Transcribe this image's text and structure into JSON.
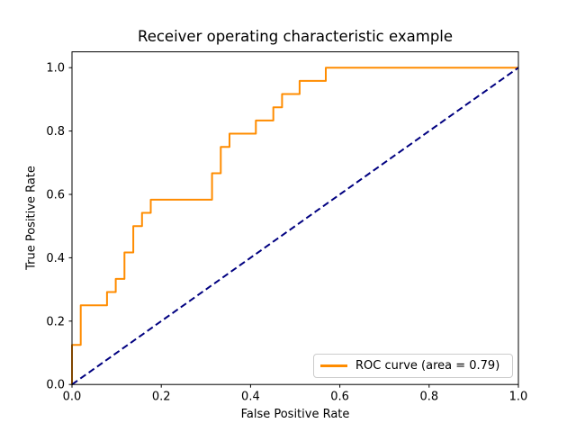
{
  "chart_data": {
    "type": "line",
    "title": "Receiver operating characteristic example",
    "xlabel": "False Positive Rate",
    "ylabel": "True Positive Rate",
    "xlim": [
      0.0,
      1.0
    ],
    "ylim": [
      0.0,
      1.05
    ],
    "x_ticks": [
      0.0,
      0.2,
      0.4,
      0.6,
      0.8,
      1.0
    ],
    "x_tick_labels": [
      "0.0",
      "0.2",
      "0.4",
      "0.6",
      "0.8",
      "1.0"
    ],
    "y_ticks": [
      0.0,
      0.2,
      0.4,
      0.6,
      0.8,
      1.0
    ],
    "y_tick_labels": [
      "0.0",
      "0.2",
      "0.4",
      "0.6",
      "0.8",
      "1.0"
    ],
    "grid": false,
    "background_color": "#ffffff",
    "axes_edge_color": "#000000",
    "legend": {
      "position": "lower right",
      "border_color": "#cccccc",
      "entries": [
        {
          "label": "ROC curve (area = 0.79)",
          "color": "#FF8C00",
          "style": "solid"
        }
      ]
    },
    "auc": 0.79,
    "series": [
      {
        "name": "ROC curve",
        "color": "#FF8C00",
        "style": "solid",
        "linewidth": 2,
        "points": [
          [
            0.0,
            0.0
          ],
          [
            0.0,
            0.125
          ],
          [
            0.0196,
            0.125
          ],
          [
            0.0196,
            0.25
          ],
          [
            0.0784,
            0.25
          ],
          [
            0.0784,
            0.2917
          ],
          [
            0.098,
            0.2917
          ],
          [
            0.098,
            0.3333
          ],
          [
            0.1176,
            0.3333
          ],
          [
            0.1176,
            0.4167
          ],
          [
            0.1373,
            0.4167
          ],
          [
            0.1373,
            0.5
          ],
          [
            0.1569,
            0.5
          ],
          [
            0.1569,
            0.5417
          ],
          [
            0.1765,
            0.5417
          ],
          [
            0.1765,
            0.5833
          ],
          [
            0.3137,
            0.5833
          ],
          [
            0.3137,
            0.6667
          ],
          [
            0.3333,
            0.6667
          ],
          [
            0.3333,
            0.75
          ],
          [
            0.3529,
            0.75
          ],
          [
            0.3529,
            0.7917
          ],
          [
            0.4118,
            0.7917
          ],
          [
            0.4118,
            0.8333
          ],
          [
            0.451,
            0.8333
          ],
          [
            0.451,
            0.875
          ],
          [
            0.4706,
            0.875
          ],
          [
            0.4706,
            0.9167
          ],
          [
            0.5098,
            0.9167
          ],
          [
            0.5098,
            0.9583
          ],
          [
            0.5686,
            0.9583
          ],
          [
            0.5686,
            1.0
          ],
          [
            1.0,
            1.0
          ]
        ]
      },
      {
        "name": "chance diagonal",
        "color": "#000080",
        "style": "dashed",
        "linewidth": 2,
        "points": [
          [
            0.0,
            0.0
          ],
          [
            1.0,
            1.0
          ]
        ]
      }
    ]
  }
}
